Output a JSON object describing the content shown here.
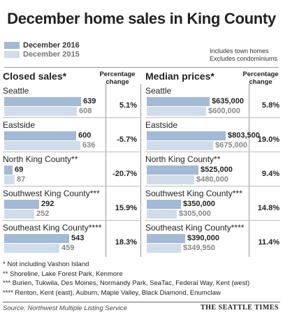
{
  "title": "December home sales in King County",
  "legend": {
    "current": "December 2016",
    "previous": "December 2015"
  },
  "notes": [
    "Includes town homes",
    "Excludes condominiums"
  ],
  "colors": {
    "current": "#a4b9d4",
    "previous": "#d1dcea"
  },
  "chart_data": [
    {
      "type": "bar",
      "title": "Closed sales*",
      "pct_header": [
        "Percentage",
        "change"
      ],
      "categories": [
        "Seattle",
        "Eastside",
        "North King County**",
        "Southwest King County***",
        "Southeast King County****"
      ],
      "series": [
        {
          "name": "December 2016",
          "values": [
            639,
            600,
            69,
            292,
            543
          ],
          "labels": [
            "639",
            "600",
            "69",
            "292",
            "543"
          ]
        },
        {
          "name": "December 2015",
          "values": [
            608,
            636,
            87,
            252,
            459
          ],
          "labels": [
            "608",
            "636",
            "87",
            "252",
            "459"
          ]
        }
      ],
      "pct_change": [
        "5.1%",
        "-5.7%",
        "-20.7%",
        "15.9%",
        "18.3%"
      ],
      "max": 700
    },
    {
      "type": "bar",
      "title": "Median prices*",
      "pct_header": [
        "Percentage",
        "change"
      ],
      "categories": [
        "Seattle",
        "Eastside",
        "North King County**",
        "Southwest King County***",
        "Southeast King County****"
      ],
      "series": [
        {
          "name": "December 2016",
          "values": [
            635000,
            803500,
            525000,
            350000,
            390000
          ],
          "labels": [
            "$635,000",
            "$803,500",
            "$525,000",
            "$350,000",
            "$390,000"
          ]
        },
        {
          "name": "December 2015",
          "values": [
            600000,
            675000,
            480000,
            305000,
            349950
          ],
          "labels": [
            "$600,000",
            "$675,000",
            "$480,000",
            "$305,000",
            "$349,950"
          ]
        }
      ],
      "pct_change": [
        "5.8%",
        "19.0%",
        "9.4%",
        "14.8%",
        "11.4%"
      ],
      "max": 850000
    }
  ],
  "footnotes": [
    "* Not including Vashon Island",
    "**  Shoreline, Lake Forest Park, Kenmore",
    "*** Burien, Tukwila, Des Moines, Normandy Park, SeaTac, Federal Way, Kent (west)",
    "**** Renton, Kent (east), Auburn, Maple Valley, Black Diamond, Enumclaw"
  ],
  "source": "Source: Northwest Multiple Listing Service",
  "brand": "THE SEATTLE TIMES"
}
